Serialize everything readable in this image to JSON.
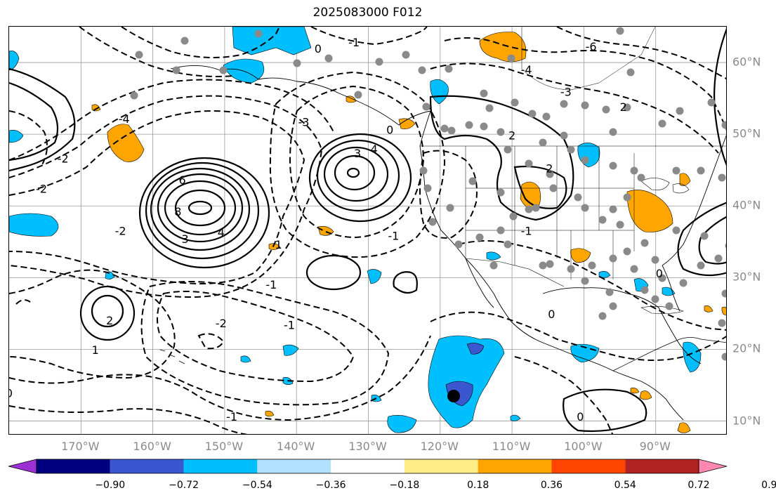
{
  "title": "2025083000 F012",
  "lon_labels": [
    {
      "text": "170°W",
      "lon": -170
    },
    {
      "text": "160°W",
      "lon": -160
    },
    {
      "text": "150°W",
      "lon": -150
    },
    {
      "text": "140°W",
      "lon": -140
    },
    {
      "text": "130°W",
      "lon": -130
    },
    {
      "text": "120°W",
      "lon": -120
    },
    {
      "text": "110°W",
      "lon": -110
    },
    {
      "text": "100°W",
      "lon": -100
    },
    {
      "text": "90°W",
      "lon": -90
    }
  ],
  "lat_labels": [
    {
      "text": "60°N",
      "lat": 60
    },
    {
      "text": "50°N",
      "lat": 50
    },
    {
      "text": "40°N",
      "lat": 40
    },
    {
      "text": "30°N",
      "lat": 30
    },
    {
      "text": "20°N",
      "lat": 20
    },
    {
      "text": "10°N",
      "lat": 10
    }
  ],
  "map_extent": {
    "lon_min": -180,
    "lon_max": -80,
    "lat_min": 8,
    "lat_max": 65
  },
  "colorbar": {
    "colors": [
      "#9b30d6",
      "#000080",
      "#3a57d0",
      "#00bfff",
      "#b0e2ff",
      "#ffffff",
      "#ffee88",
      "#ffa500",
      "#ff4500",
      "#b22222",
      "#ff88b0"
    ],
    "ticks": [
      "−0.90",
      "−0.72",
      "−0.54",
      "−0.36",
      "−0.18",
      "0.18",
      "0.36",
      "0.54",
      "0.72",
      "0.90"
    ]
  },
  "contour_labels": [
    {
      "text": "6",
      "lon": -155.9,
      "lat": 43.5
    },
    {
      "text": "8",
      "lon": -156.5,
      "lat": 39.1
    },
    {
      "text": "4",
      "lon": -150.5,
      "lat": 36.2
    },
    {
      "text": "3",
      "lon": -155.5,
      "lat": 35.3
    },
    {
      "text": "1",
      "lon": -142.5,
      "lat": 34.5
    },
    {
      "text": "-1",
      "lon": -143.5,
      "lat": 28.9
    },
    {
      "text": "2",
      "lon": -166,
      "lat": 23.9
    },
    {
      "text": "1",
      "lon": -168,
      "lat": 19.8
    },
    {
      "text": "-2",
      "lon": -150.5,
      "lat": 23.5
    },
    {
      "text": "-2",
      "lon": -164.5,
      "lat": 36.4
    },
    {
      "text": "-2",
      "lon": -172.5,
      "lat": 46.5
    },
    {
      "text": "3",
      "lon": -131.5,
      "lat": 47.2
    },
    {
      "text": "4",
      "lon": -129.2,
      "lat": 47.8
    },
    {
      "text": "0",
      "lon": -127,
      "lat": 50.5
    },
    {
      "text": "-1",
      "lon": -126.5,
      "lat": 35.7
    },
    {
      "text": "-1",
      "lon": -141,
      "lat": 23.3
    },
    {
      "text": "-3",
      "lon": -139,
      "lat": 51.6
    },
    {
      "text": "-4",
      "lon": -164,
      "lat": 52
    },
    {
      "text": "-4",
      "lon": -108,
      "lat": 58.9
    },
    {
      "text": "-3",
      "lon": -102.5,
      "lat": 55.8
    },
    {
      "text": "-6",
      "lon": -99,
      "lat": 62.1
    },
    {
      "text": "2",
      "lon": -94.5,
      "lat": 53.7
    },
    {
      "text": "2",
      "lon": -110,
      "lat": 49.7
    },
    {
      "text": "2",
      "lon": -104.8,
      "lat": 45.1
    },
    {
      "text": "-1",
      "lon": -108,
      "lat": 36.4
    },
    {
      "text": "0",
      "lon": -104.5,
      "lat": 24.8
    },
    {
      "text": "0",
      "lon": -89.5,
      "lat": 30.5
    },
    {
      "text": "0",
      "lon": -180,
      "lat": 13.8
    },
    {
      "text": "-2",
      "lon": -175.5,
      "lat": 42.3
    },
    {
      "text": "-1",
      "lon": -149,
      "lat": 10.5
    },
    {
      "text": "0",
      "lon": -100.5,
      "lat": 10.5
    },
    {
      "text": "-1",
      "lon": -132,
      "lat": 62.7
    },
    {
      "text": "0",
      "lon": -137,
      "lat": 61.8
    }
  ]
}
